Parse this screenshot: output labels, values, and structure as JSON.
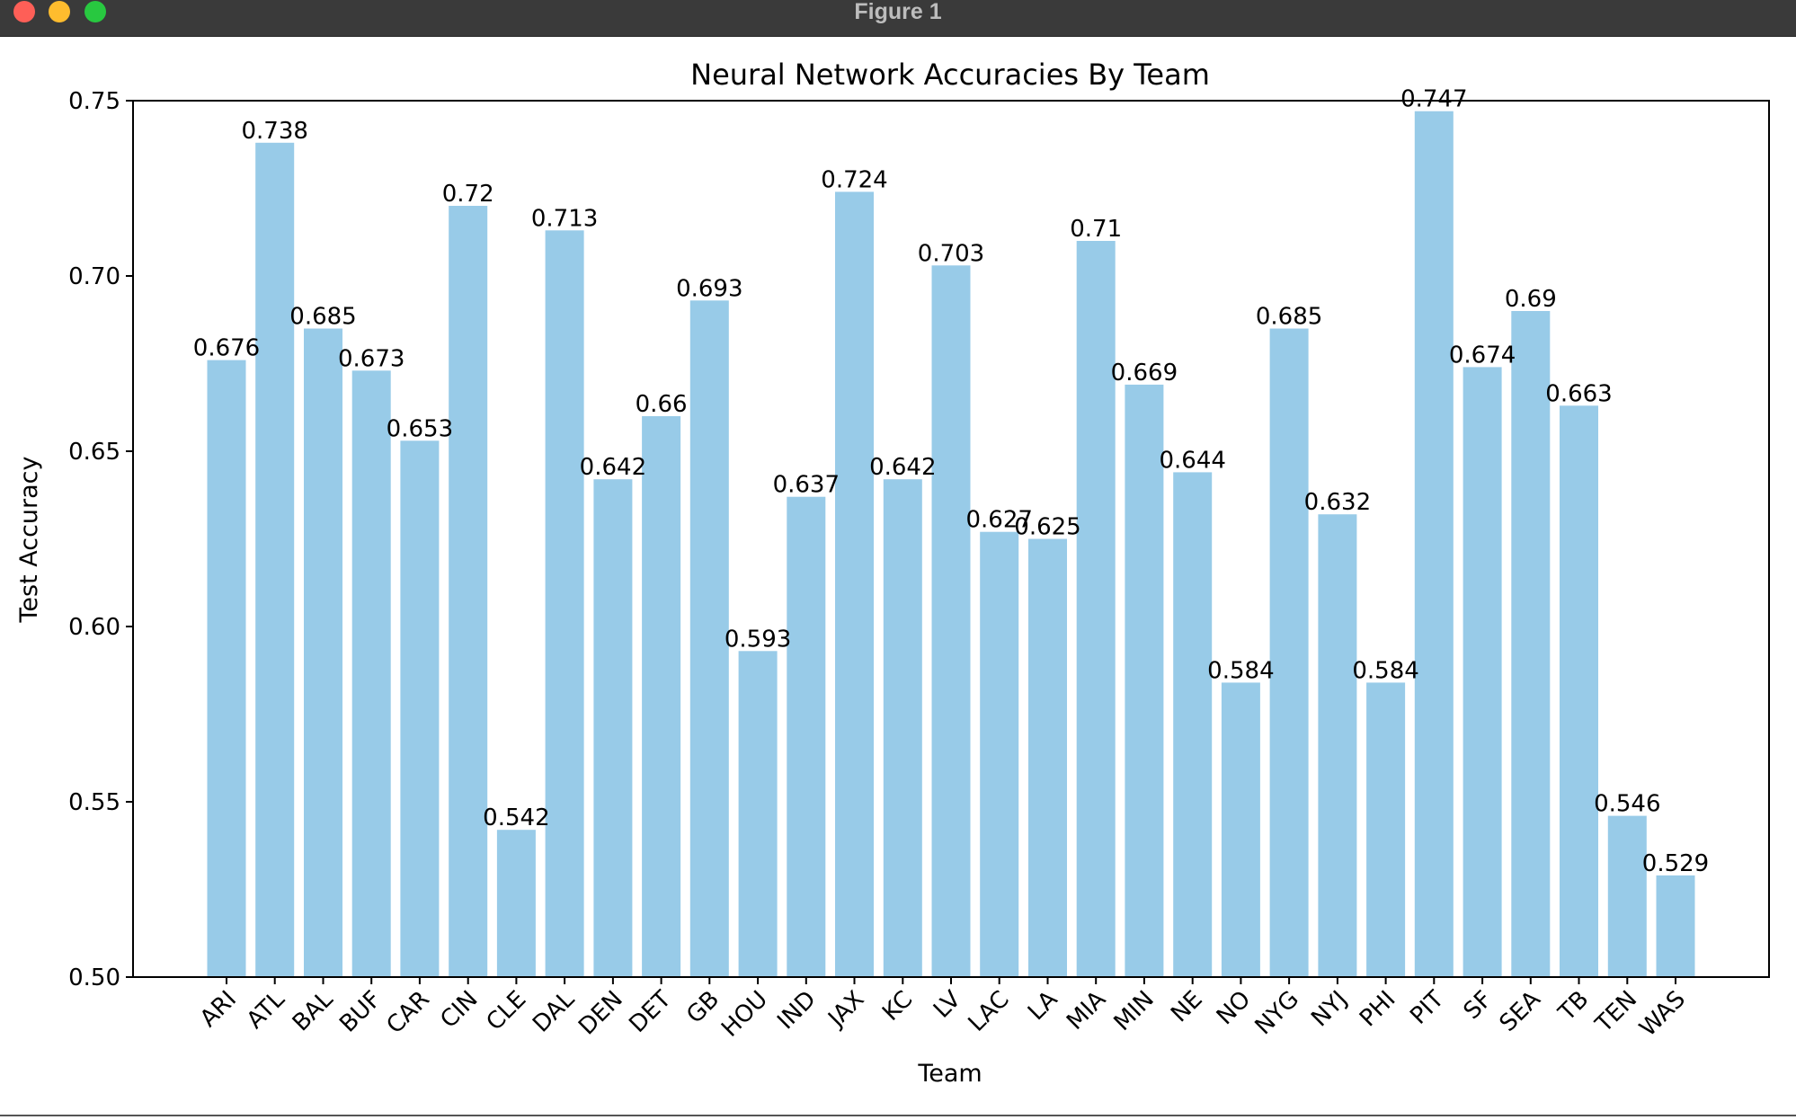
{
  "window": {
    "title": "Figure 1"
  },
  "chart_data": {
    "type": "bar",
    "title": "Neural Network Accuracies By Team",
    "xlabel": "Team",
    "ylabel": "Test Accuracy",
    "ylim": [
      0.5,
      0.75
    ],
    "yticks": [
      "0.50",
      "0.55",
      "0.60",
      "0.65",
      "0.70",
      "0.75"
    ],
    "categories": [
      "ARI",
      "ATL",
      "BAL",
      "BUF",
      "CAR",
      "CIN",
      "CLE",
      "DAL",
      "DEN",
      "DET",
      "GB",
      "HOU",
      "IND",
      "JAX",
      "KC",
      "LV",
      "LAC",
      "LA",
      "MIA",
      "MIN",
      "NE",
      "NO",
      "NYG",
      "NYJ",
      "PHI",
      "PIT",
      "SF",
      "SEA",
      "TB",
      "TEN",
      "WAS"
    ],
    "values": [
      0.676,
      0.738,
      0.685,
      0.673,
      0.653,
      0.72,
      0.542,
      0.713,
      0.642,
      0.66,
      0.693,
      0.593,
      0.637,
      0.724,
      0.642,
      0.703,
      0.627,
      0.625,
      0.71,
      0.669,
      0.644,
      0.584,
      0.685,
      0.632,
      0.584,
      0.747,
      0.674,
      0.69,
      0.663,
      0.546,
      0.529
    ],
    "labels": [
      "0.676",
      "0.738",
      "0.685",
      "0.673",
      "0.653",
      "0.72",
      "0.542",
      "0.713",
      "0.642",
      "0.66",
      "0.693",
      "0.593",
      "0.637",
      "0.724",
      "0.642",
      "0.703",
      "0.627",
      "0.625",
      "0.71",
      "0.669",
      "0.644",
      "0.584",
      "0.685",
      "0.632",
      "0.584",
      "0.747",
      "0.674",
      "0.69",
      "0.663",
      "0.546",
      "0.529"
    ],
    "bar_color": "#98cbe8",
    "grid": false,
    "legend": "none"
  }
}
